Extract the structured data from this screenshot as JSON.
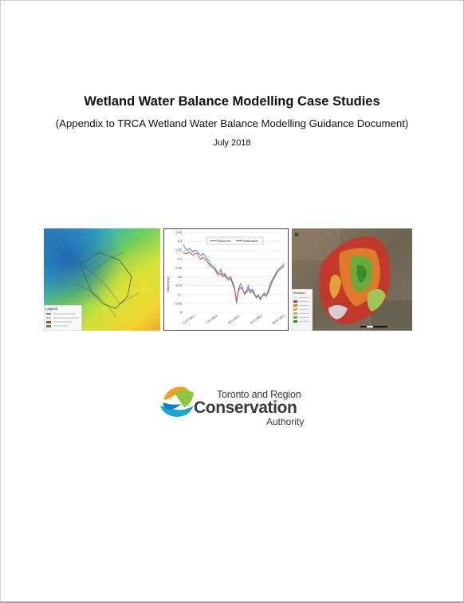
{
  "document": {
    "title": "Wetland Water Balance Modelling Case Studies",
    "subtitle": "(Appendix to TRCA Wetland Water Balance Modelling Guidance Document)",
    "date": "July 2018"
  },
  "figures": {
    "elevation_map": {
      "legend_title": "Legend"
    },
    "hydrograph": {
      "legend": [
        "Observed",
        "Simulated"
      ],
      "ylabel": "Depth (m)",
      "x_ticks": [
        "6/17/2013",
        "7/12/2013",
        "8/11/2013",
        "9/15/2013",
        "10/11/2013"
      ],
      "y_ticks": [
        "0.45",
        "0.4",
        "0.35",
        "0.3",
        "0.25",
        "0.2",
        "0.15",
        "0.1",
        "0.05",
        "0"
      ]
    },
    "depth_map": {
      "north_arrow": "N",
      "legend_title": "Elevation"
    }
  },
  "logo": {
    "line1": "Toronto and Region",
    "line2": "Conservation",
    "line3": "Authority"
  },
  "chart_data": {
    "type": "line",
    "ylabel": "Depth (m)",
    "ylim": [
      0,
      0.45
    ],
    "x_ticks": [
      "6/17/2013",
      "7/12/2013",
      "8/11/2013",
      "9/15/2013",
      "10/11/2013"
    ],
    "legend_position": "top-center",
    "series": [
      {
        "name": "Observed",
        "color": "#4f81bd",
        "values": [
          0.38,
          0.36,
          0.35,
          0.36,
          0.35,
          0.34,
          0.35,
          0.34,
          0.33,
          0.32,
          0.33,
          0.32,
          0.3,
          0.29,
          0.27,
          0.26,
          0.25,
          0.23,
          0.22,
          0.24,
          0.21,
          0.22,
          0.2,
          0.19,
          0.2,
          0.17,
          0.14,
          0.05,
          0.13,
          0.16,
          0.14,
          0.1,
          0.12,
          0.15,
          0.12,
          0.13,
          0.11,
          0.08,
          0.1,
          0.07,
          0.09,
          0.11,
          0.09,
          0.12,
          0.16,
          0.18,
          0.2,
          0.22,
          0.24,
          0.25,
          0.26,
          0.27
        ]
      },
      {
        "name": "Simulated",
        "color": "#c0504d",
        "values": [
          0.34,
          0.33,
          0.33,
          0.34,
          0.33,
          0.32,
          0.33,
          0.33,
          0.31,
          0.3,
          0.31,
          0.3,
          0.29,
          0.27,
          0.26,
          0.25,
          0.24,
          0.22,
          0.21,
          0.22,
          0.2,
          0.21,
          0.19,
          0.18,
          0.19,
          0.16,
          0.13,
          0.07,
          0.12,
          0.14,
          0.13,
          0.11,
          0.11,
          0.13,
          0.11,
          0.12,
          0.1,
          0.09,
          0.09,
          0.08,
          0.09,
          0.1,
          0.09,
          0.11,
          0.14,
          0.17,
          0.19,
          0.21,
          0.23,
          0.24,
          0.25,
          0.26
        ]
      }
    ]
  }
}
